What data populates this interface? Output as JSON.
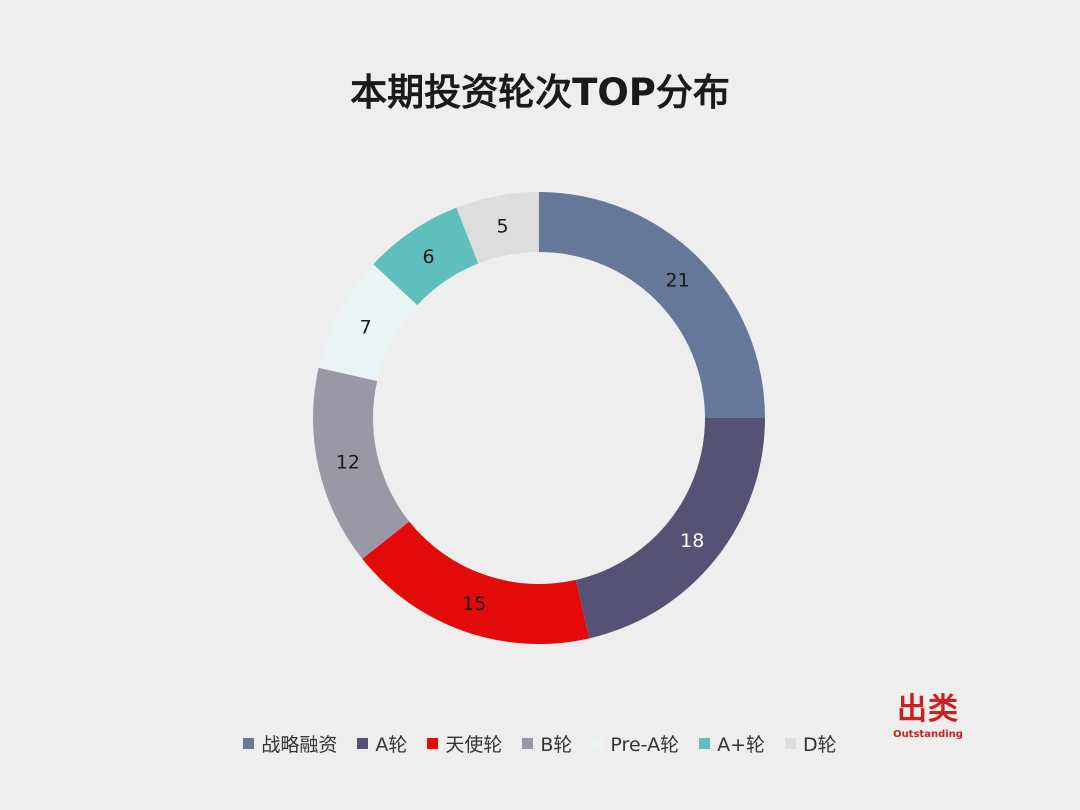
{
  "chart_data": {
    "type": "pie",
    "style": "donut",
    "title": "本期投资轮次TOP分布",
    "legend_position": "bottom",
    "categories": [
      "战略融资",
      "A轮",
      "天使轮",
      "B轮",
      "Pre-A轮",
      "A+轮",
      "D轮"
    ],
    "values": [
      21,
      18,
      15,
      12,
      7,
      6,
      5
    ],
    "colors": [
      "#66789a",
      "#565275",
      "#e40a0a",
      "#9a98a7",
      "#eaf4f4",
      "#5ebfbd",
      "#dddddd"
    ],
    "label_colors": [
      "#1a1a1a",
      "#ffffff",
      "#1a1a1a",
      "#1a1a1a",
      "#1a1a1a",
      "#1a1a1a",
      "#1a1a1a"
    ]
  },
  "logo": {
    "main": "出类",
    "sub": "Outstanding"
  }
}
